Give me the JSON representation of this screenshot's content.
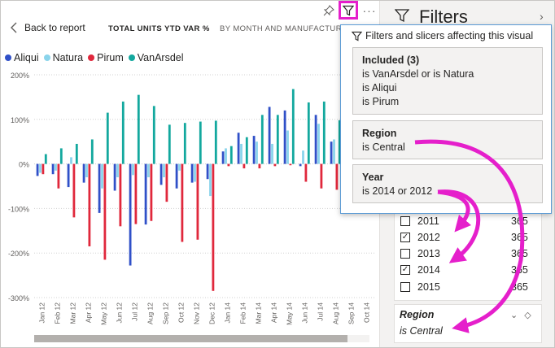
{
  "header": {
    "back_label": "Back to report",
    "crumb_title": "TOTAL UNITS YTD VAR %",
    "crumb_sub": "BY MONTH AND MANUFACTURER"
  },
  "legend": [
    {
      "name": "Aliqui",
      "color": "#3050c8"
    },
    {
      "name": "Natura",
      "color": "#8ad4eb"
    },
    {
      "name": "Pirum",
      "color": "#e0283c"
    },
    {
      "name": "VanArsdel",
      "color": "#13a89e"
    }
  ],
  "chart_data": {
    "type": "bar",
    "ylim": [
      -300,
      200
    ],
    "yticks": [
      "200%",
      "100%",
      "0%",
      "-100%",
      "-200%",
      "-300%"
    ],
    "ytick_values": [
      200,
      100,
      0,
      -100,
      -200,
      -300
    ],
    "categories": [
      "Jan 12",
      "Feb 12",
      "Mar 12",
      "Apr 12",
      "May 12",
      "Jun 12",
      "Jul 12",
      "Aug 12",
      "Sep 12",
      "Oct 12",
      "Nov 12",
      "Dec 12",
      "Jan 14",
      "Feb 14",
      "Mar 14",
      "Apr 14",
      "May 14",
      "Jun 14",
      "Jul 14",
      "Aug 14",
      "Sep 14",
      "Oct 14"
    ],
    "category_labels": [
      "Jan 12",
      "Feb 12",
      "Mar 12",
      "Apr 12",
      "May 12",
      "Jun 12",
      "Jul 12",
      "Aug 12",
      "Sep 12",
      "Oct 12",
      "Nov 12",
      "Dec 12",
      "Jan 14",
      "Feb 14",
      "Mar 14",
      "Apr 14",
      "May 14",
      "Jun 14",
      "Jul 14",
      "Aug 14",
      "Sep 14",
      "Oct 14"
    ],
    "series": [
      {
        "name": "Aliqui",
        "color": "#3050c8",
        "values": [
          -27,
          -23,
          -52,
          -42,
          -110,
          -60,
          -228,
          -136,
          -47,
          -55,
          -42,
          -34,
          28,
          70,
          63,
          128,
          120,
          -5,
          110,
          50,
          null,
          null
        ]
      },
      {
        "name": "Natura",
        "color": "#8ad4eb",
        "values": [
          -20,
          -15,
          15,
          -30,
          -55,
          -30,
          -25,
          -30,
          -30,
          -15,
          -40,
          -72,
          35,
          45,
          50,
          45,
          75,
          30,
          90,
          55,
          null,
          null
        ]
      },
      {
        "name": "Pirum",
        "color": "#e0283c",
        "values": [
          -23,
          -55,
          -120,
          -185,
          -215,
          -140,
          -135,
          -128,
          -85,
          -175,
          -170,
          -285,
          -5,
          -10,
          -10,
          -5,
          -3,
          -40,
          -55,
          -58,
          null,
          null
        ]
      },
      {
        "name": "VanArsdel",
        "color": "#13a89e",
        "values": [
          22,
          35,
          45,
          55,
          115,
          140,
          155,
          130,
          88,
          92,
          95,
          97,
          40,
          60,
          110,
          110,
          168,
          138,
          140,
          98,
          null,
          null
        ]
      }
    ]
  },
  "filters_pane": {
    "title": "Filters",
    "years": [
      {
        "label": "2011",
        "count": "365",
        "checked": false
      },
      {
        "label": "2012",
        "count": "365",
        "checked": true
      },
      {
        "label": "2013",
        "count": "365",
        "checked": false
      },
      {
        "label": "2014",
        "count": "365",
        "checked": true
      },
      {
        "label": "2015",
        "count": "365",
        "checked": false
      }
    ],
    "region_title": "Region",
    "region_value": "is Central"
  },
  "popup": {
    "heading": "Filters and slicers affecting this visual",
    "included_title": "Included (3)",
    "included_lines": [
      "is VanArsdel or is Natura",
      "is Aliqui",
      "is Pirum"
    ],
    "region_title": "Region",
    "region_value": "is Central",
    "year_title": "Year",
    "year_value": "is 2014 or 2012"
  },
  "accent": "#e51fcb"
}
